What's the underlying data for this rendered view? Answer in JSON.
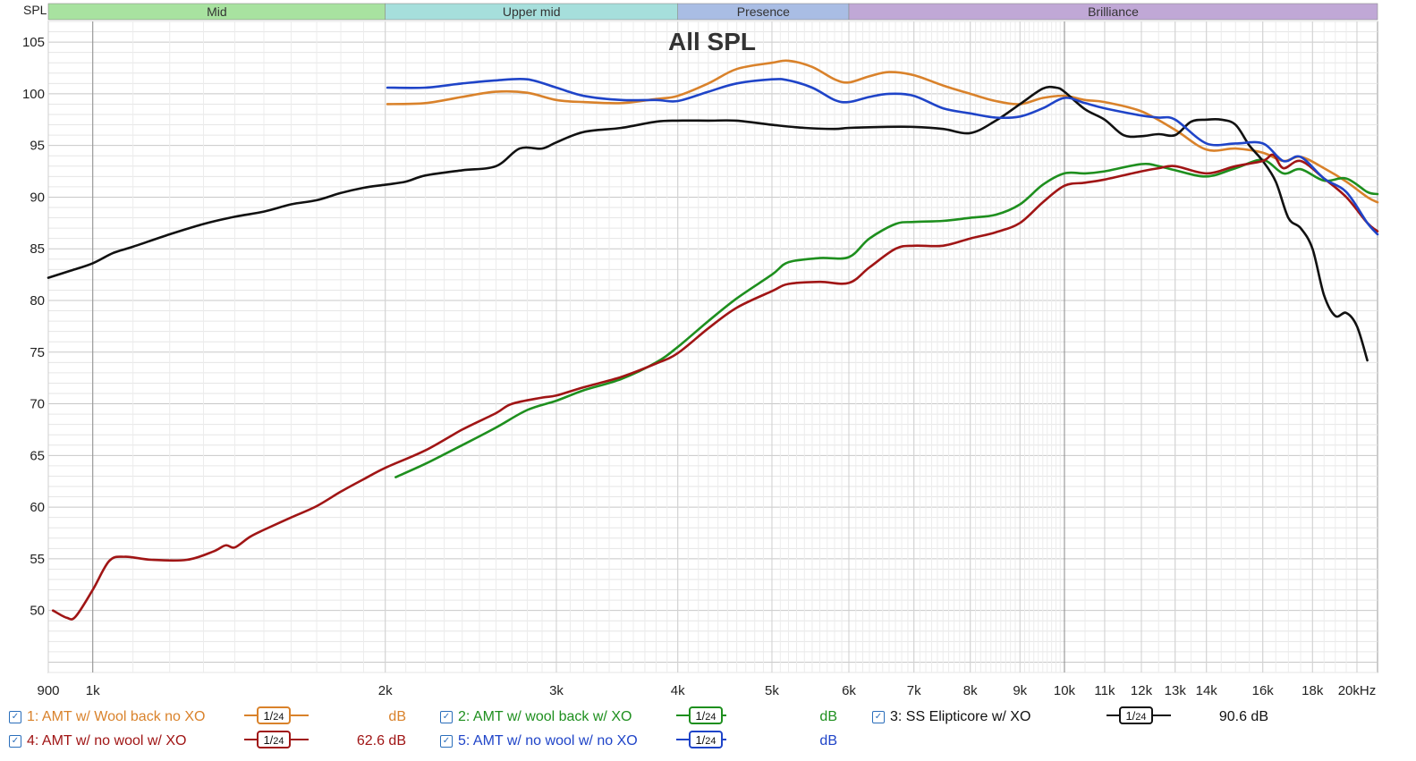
{
  "chart_data": {
    "type": "line",
    "title": "All SPL",
    "ylabel": "SPL",
    "x_unit": "Hz",
    "x_scale": "log",
    "xlim": [
      900,
      21000
    ],
    "ylim": [
      44,
      107
    ],
    "yticks": [
      50,
      55,
      60,
      65,
      70,
      75,
      80,
      85,
      90,
      95,
      100,
      105
    ],
    "xticks": [
      {
        "value": 900,
        "label": "900"
      },
      {
        "value": 1000,
        "label": "1k"
      },
      {
        "value": 2000,
        "label": "2k"
      },
      {
        "value": 3000,
        "label": "3k"
      },
      {
        "value": 4000,
        "label": "4k"
      },
      {
        "value": 5000,
        "label": "5k"
      },
      {
        "value": 6000,
        "label": "6k"
      },
      {
        "value": 7000,
        "label": "7k"
      },
      {
        "value": 8000,
        "label": "8k"
      },
      {
        "value": 9000,
        "label": "9k"
      },
      {
        "value": 10000,
        "label": "10k"
      },
      {
        "value": 11000,
        "label": "11k"
      },
      {
        "value": 12000,
        "label": "12k"
      },
      {
        "value": 13000,
        "label": "13k"
      },
      {
        "value": 14000,
        "label": "14k"
      },
      {
        "value": 16000,
        "label": "16k"
      },
      {
        "value": 18000,
        "label": "18k"
      },
      {
        "value": 20000,
        "label": "20kHz"
      }
    ],
    "bands": [
      {
        "label": "Mid",
        "from": 900,
        "to": 2000,
        "color": "#a8e2a0"
      },
      {
        "label": "Upper mid",
        "from": 2000,
        "to": 4000,
        "color": "#a6dfdc"
      },
      {
        "label": "Presence",
        "from": 4000,
        "to": 6000,
        "color": "#a9bde4"
      },
      {
        "label": "Brilliance",
        "from": 6000,
        "to": 21000,
        "color": "#c0a8d6"
      }
    ],
    "series": [
      {
        "name": "1: AMT w/ Wool back no XO",
        "color": "#d9822b",
        "points": [
          [
            2010,
            99
          ],
          [
            2200,
            99.1
          ],
          [
            2400,
            99.7
          ],
          [
            2600,
            100.2
          ],
          [
            2800,
            100.1
          ],
          [
            3000,
            99.4
          ],
          [
            3200,
            99.2
          ],
          [
            3500,
            99.1
          ],
          [
            3800,
            99.5
          ],
          [
            4000,
            99.8
          ],
          [
            4300,
            101
          ],
          [
            4600,
            102.4
          ],
          [
            5000,
            103
          ],
          [
            5200,
            103.2
          ],
          [
            5500,
            102.6
          ],
          [
            5800,
            101.4
          ],
          [
            6000,
            101.1
          ],
          [
            6300,
            101.7
          ],
          [
            6600,
            102.1
          ],
          [
            7000,
            101.8
          ],
          [
            7500,
            100.8
          ],
          [
            8000,
            100
          ],
          [
            8500,
            99.3
          ],
          [
            9000,
            99
          ],
          [
            9500,
            99.6
          ],
          [
            10000,
            99.8
          ],
          [
            10500,
            99.4
          ],
          [
            11000,
            99.2
          ],
          [
            12000,
            98.3
          ],
          [
            13000,
            96.5
          ],
          [
            14000,
            94.6
          ],
          [
            15000,
            94.7
          ],
          [
            16000,
            94.3
          ],
          [
            16800,
            93.5
          ],
          [
            17500,
            93.9
          ],
          [
            18500,
            92.8
          ],
          [
            19500,
            91.5
          ],
          [
            20500,
            90
          ],
          [
            21000,
            89.5
          ]
        ]
      },
      {
        "name": "2: AMT w/ wool back w/ XO",
        "color": "#1e8f1e",
        "points": [
          [
            2050,
            62.9
          ],
          [
            2200,
            64.2
          ],
          [
            2400,
            66
          ],
          [
            2600,
            67.7
          ],
          [
            2800,
            69.4
          ],
          [
            3000,
            70.3
          ],
          [
            3200,
            71.3
          ],
          [
            3500,
            72.4
          ],
          [
            3800,
            74
          ],
          [
            4000,
            75.5
          ],
          [
            4300,
            78
          ],
          [
            4600,
            80.2
          ],
          [
            5000,
            82.5
          ],
          [
            5200,
            83.7
          ],
          [
            5600,
            84.1
          ],
          [
            6000,
            84.2
          ],
          [
            6300,
            86
          ],
          [
            6700,
            87.4
          ],
          [
            7000,
            87.6
          ],
          [
            7500,
            87.7
          ],
          [
            8000,
            88
          ],
          [
            8500,
            88.3
          ],
          [
            9000,
            89.3
          ],
          [
            9500,
            91.2
          ],
          [
            10000,
            92.3
          ],
          [
            10500,
            92.3
          ],
          [
            11000,
            92.5
          ],
          [
            12000,
            93.2
          ],
          [
            12500,
            93
          ],
          [
            13000,
            92.6
          ],
          [
            14000,
            92
          ],
          [
            15000,
            92.8
          ],
          [
            16000,
            93.6
          ],
          [
            16800,
            92.3
          ],
          [
            17500,
            92.7
          ],
          [
            18500,
            91.6
          ],
          [
            19500,
            91.8
          ],
          [
            20500,
            90.5
          ],
          [
            21000,
            90.3
          ]
        ]
      },
      {
        "name": "3: SS Elipticore w/ XO",
        "color": "#111111",
        "value_label": "90.6 dB",
        "points": [
          [
            900,
            82.2
          ],
          [
            950,
            82.9
          ],
          [
            1000,
            83.6
          ],
          [
            1050,
            84.6
          ],
          [
            1100,
            85.2
          ],
          [
            1200,
            86.4
          ],
          [
            1300,
            87.4
          ],
          [
            1400,
            88.1
          ],
          [
            1500,
            88.6
          ],
          [
            1600,
            89.3
          ],
          [
            1700,
            89.7
          ],
          [
            1800,
            90.4
          ],
          [
            1900,
            90.9
          ],
          [
            2000,
            91.2
          ],
          [
            2100,
            91.5
          ],
          [
            2200,
            92.1
          ],
          [
            2400,
            92.6
          ],
          [
            2600,
            93
          ],
          [
            2750,
            94.7
          ],
          [
            2900,
            94.7
          ],
          [
            3000,
            95.3
          ],
          [
            3200,
            96.3
          ],
          [
            3500,
            96.7
          ],
          [
            3800,
            97.3
          ],
          [
            4000,
            97.4
          ],
          [
            4300,
            97.4
          ],
          [
            4600,
            97.4
          ],
          [
            5000,
            97
          ],
          [
            5400,
            96.7
          ],
          [
            5800,
            96.6
          ],
          [
            6000,
            96.7
          ],
          [
            6500,
            96.8
          ],
          [
            7000,
            96.8
          ],
          [
            7500,
            96.6
          ],
          [
            8000,
            96.2
          ],
          [
            8500,
            97.4
          ],
          [
            9000,
            99
          ],
          [
            9500,
            100.5
          ],
          [
            9800,
            100.6
          ],
          [
            10000,
            100.2
          ],
          [
            10500,
            98.5
          ],
          [
            11000,
            97.5
          ],
          [
            11500,
            96
          ],
          [
            12000,
            95.9
          ],
          [
            12500,
            96.1
          ],
          [
            13000,
            96
          ],
          [
            13500,
            97.3
          ],
          [
            14000,
            97.5
          ],
          [
            14500,
            97.5
          ],
          [
            15000,
            97
          ],
          [
            15500,
            95
          ],
          [
            16000,
            93.5
          ],
          [
            16500,
            91.5
          ],
          [
            17000,
            88
          ],
          [
            17500,
            87
          ],
          [
            18000,
            85
          ],
          [
            18500,
            80.5
          ],
          [
            19000,
            78.5
          ],
          [
            19500,
            78.8
          ],
          [
            20000,
            77.5
          ],
          [
            20500,
            74.2
          ]
        ]
      },
      {
        "name": "4: AMT w/ no wool w/ XO",
        "color": "#a01515",
        "value_label": "62.6 dB",
        "points": [
          [
            910,
            50
          ],
          [
            940,
            49.3
          ],
          [
            960,
            49.4
          ],
          [
            1000,
            52
          ],
          [
            1040,
            54.8
          ],
          [
            1080,
            55.2
          ],
          [
            1150,
            54.9
          ],
          [
            1250,
            54.9
          ],
          [
            1330,
            55.7
          ],
          [
            1370,
            56.3
          ],
          [
            1400,
            56.1
          ],
          [
            1450,
            57.1
          ],
          [
            1500,
            57.8
          ],
          [
            1600,
            59
          ],
          [
            1700,
            60.1
          ],
          [
            1800,
            61.5
          ],
          [
            1900,
            62.7
          ],
          [
            2000,
            63.8
          ],
          [
            2200,
            65.5
          ],
          [
            2400,
            67.5
          ],
          [
            2600,
            69.1
          ],
          [
            2700,
            70
          ],
          [
            2900,
            70.6
          ],
          [
            3000,
            70.8
          ],
          [
            3200,
            71.6
          ],
          [
            3500,
            72.6
          ],
          [
            3800,
            73.9
          ],
          [
            4000,
            74.9
          ],
          [
            4300,
            77.3
          ],
          [
            4600,
            79.3
          ],
          [
            5000,
            80.9
          ],
          [
            5200,
            81.6
          ],
          [
            5600,
            81.8
          ],
          [
            6000,
            81.7
          ],
          [
            6300,
            83.2
          ],
          [
            6700,
            85
          ],
          [
            7000,
            85.3
          ],
          [
            7500,
            85.3
          ],
          [
            8000,
            86
          ],
          [
            8500,
            86.6
          ],
          [
            9000,
            87.5
          ],
          [
            9500,
            89.5
          ],
          [
            10000,
            91.1
          ],
          [
            10500,
            91.4
          ],
          [
            11000,
            91.7
          ],
          [
            12000,
            92.5
          ],
          [
            12500,
            92.8
          ],
          [
            13000,
            93
          ],
          [
            14000,
            92.3
          ],
          [
            15000,
            93
          ],
          [
            16000,
            93.5
          ],
          [
            16400,
            94.1
          ],
          [
            16800,
            92.8
          ],
          [
            17500,
            93.5
          ],
          [
            18500,
            91.8
          ],
          [
            19500,
            90
          ],
          [
            20500,
            87.5
          ],
          [
            21000,
            86.7
          ]
        ]
      },
      {
        "name": "5: AMT w/ no wool w/ no XO",
        "color": "#1f44c8",
        "points": [
          [
            2010,
            100.6
          ],
          [
            2200,
            100.6
          ],
          [
            2400,
            101
          ],
          [
            2600,
            101.3
          ],
          [
            2800,
            101.4
          ],
          [
            3000,
            100.6
          ],
          [
            3200,
            99.8
          ],
          [
            3500,
            99.4
          ],
          [
            3800,
            99.4
          ],
          [
            4000,
            99.3
          ],
          [
            4300,
            100.2
          ],
          [
            4600,
            101
          ],
          [
            5000,
            101.4
          ],
          [
            5200,
            101.3
          ],
          [
            5500,
            100.6
          ],
          [
            5800,
            99.4
          ],
          [
            6000,
            99.2
          ],
          [
            6300,
            99.7
          ],
          [
            6600,
            100
          ],
          [
            7000,
            99.8
          ],
          [
            7500,
            98.6
          ],
          [
            8000,
            98.1
          ],
          [
            8500,
            97.7
          ],
          [
            9000,
            97.8
          ],
          [
            9500,
            98.6
          ],
          [
            10000,
            99.6
          ],
          [
            10500,
            99.1
          ],
          [
            11000,
            98.6
          ],
          [
            12000,
            97.9
          ],
          [
            12500,
            97.7
          ],
          [
            13000,
            97.5
          ],
          [
            14000,
            95.2
          ],
          [
            15000,
            95.2
          ],
          [
            16000,
            95.2
          ],
          [
            16800,
            93.5
          ],
          [
            17500,
            93.9
          ],
          [
            18500,
            91.8
          ],
          [
            19500,
            90.5
          ],
          [
            20500,
            87.5
          ],
          [
            21000,
            86.4
          ]
        ]
      }
    ]
  },
  "legend": {
    "smoothing_num": "1",
    "smoothing_den": "24",
    "unit": "dB",
    "check": "✓",
    "items": [
      {
        "label": "1: AMT w/ Wool back no XO",
        "color": "#d9822b",
        "value": "dB"
      },
      {
        "label": "2: AMT w/ wool back w/ XO",
        "color": "#1e8f1e",
        "value": "dB"
      },
      {
        "label": "3: SS Elipticore w/ XO",
        "color": "#111111",
        "value": "90.6 dB"
      },
      {
        "label": "4: AMT w/ no wool w/ XO",
        "color": "#a01515",
        "value": "62.6 dB"
      },
      {
        "label": "5: AMT w/ no wool w/ no XO",
        "color": "#1f44c8",
        "value": "dB"
      }
    ]
  }
}
